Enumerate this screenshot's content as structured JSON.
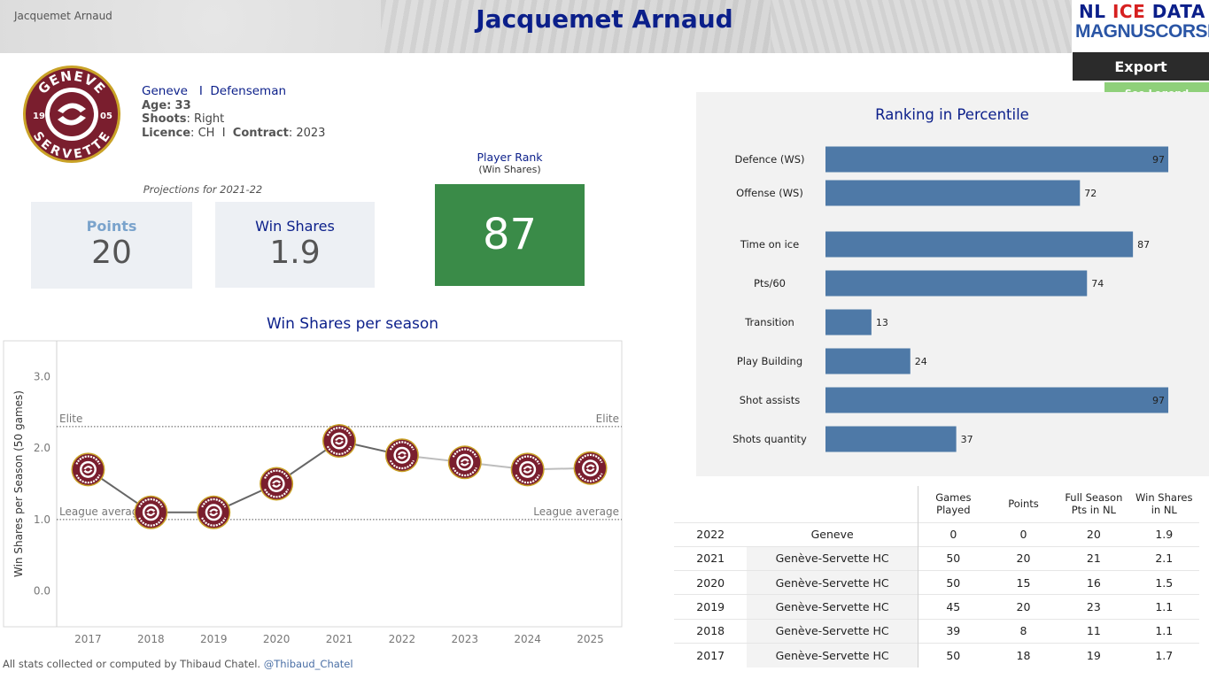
{
  "header": {
    "corner_name": "Jacquemet Arnaud",
    "title": "Jacquemet Arnaud",
    "brand_line1": "NL ICE DATA",
    "brand_line2": "MAGNUSCORSI",
    "export_label": "Export",
    "legend_label": "See Legend"
  },
  "player": {
    "team_logo_text": {
      "top": "GENEVE",
      "bottom": "SERVETTE",
      "left": "19",
      "right": "05"
    },
    "team": "Geneve",
    "separator": "I",
    "position": "Defenseman",
    "age_label": "Age:",
    "age": "33",
    "shoots_label": "Shoots",
    "shoots": "Right",
    "licence_label": "Licence",
    "licence": "CH",
    "contract_label": "Contract",
    "contract": "2023"
  },
  "projections": {
    "title": "Projections for 2021-22",
    "points_label": "Points",
    "points_value": "20",
    "ws_label": "Win Shares",
    "ws_value": "1.9"
  },
  "player_rank": {
    "title": "Player Rank",
    "subtitle": "(Win Shares)",
    "value": "87",
    "color": "#3a8b48"
  },
  "chart_data": [
    {
      "type": "line",
      "title": "Win Shares per season",
      "ylabel": "Win Shares per Season (50 games)",
      "xlabel": "",
      "x": [
        "2017",
        "2018",
        "2019",
        "2020",
        "2021",
        "2022",
        "2023",
        "2024",
        "2025"
      ],
      "series": [
        {
          "name": "Win Shares",
          "values": [
            1.7,
            1.1,
            1.1,
            1.5,
            2.1,
            1.9,
            1.8,
            1.7,
            1.72
          ]
        }
      ],
      "projection_from": "2022",
      "ylim": [
        -0.5,
        3.5
      ],
      "yticks": [
        "0.0",
        "1.0",
        "2.0",
        "3.0"
      ],
      "reference_lines": [
        {
          "label": "Elite",
          "value": 2.3
        },
        {
          "label": "League average",
          "value": 1.0
        }
      ]
    },
    {
      "type": "bar",
      "orientation": "horizontal",
      "title": "Ranking in Percentile",
      "categories": [
        "Defence (WS)",
        "Offense (WS)",
        "Time on ice",
        "Pts/60",
        "Transition",
        "Play Building",
        "Shot assists",
        "Shots quantity"
      ],
      "values": [
        97,
        72,
        87,
        74,
        13,
        24,
        97,
        37
      ],
      "xlim": [
        0,
        100
      ],
      "bar_color": "#4e79a7"
    }
  ],
  "history": {
    "columns": [
      "",
      "",
      "Games\nPlayed",
      "Points",
      "Full Season\nPts in NL",
      "Win Shares\nin NL"
    ],
    "rows": [
      {
        "year": "2022",
        "team": "Geneve",
        "gp": "0",
        "pts": "0",
        "full_pts": "20",
        "ws": "1.9"
      },
      {
        "year": "2021",
        "team": "Genève-Servette HC",
        "gp": "50",
        "pts": "20",
        "full_pts": "21",
        "ws": "2.1"
      },
      {
        "year": "2020",
        "team": "Genève-Servette HC",
        "gp": "50",
        "pts": "15",
        "full_pts": "16",
        "ws": "1.5"
      },
      {
        "year": "2019",
        "team": "Genève-Servette HC",
        "gp": "45",
        "pts": "20",
        "full_pts": "23",
        "ws": "1.1"
      },
      {
        "year": "2018",
        "team": "Genève-Servette HC",
        "gp": "39",
        "pts": "8",
        "full_pts": "11",
        "ws": "1.1"
      },
      {
        "year": "2017",
        "team": "Genève-Servette HC",
        "gp": "50",
        "pts": "18",
        "full_pts": "19",
        "ws": "1.7"
      }
    ]
  },
  "footer": {
    "text": "All stats collected or computed by Thibaud Chatel.",
    "handle": "@Thibaud_Chatel"
  },
  "colors": {
    "title_blue": "#0b1f8a",
    "team_maroon": "#7a1e2e",
    "team_gold": "#c9a227"
  }
}
